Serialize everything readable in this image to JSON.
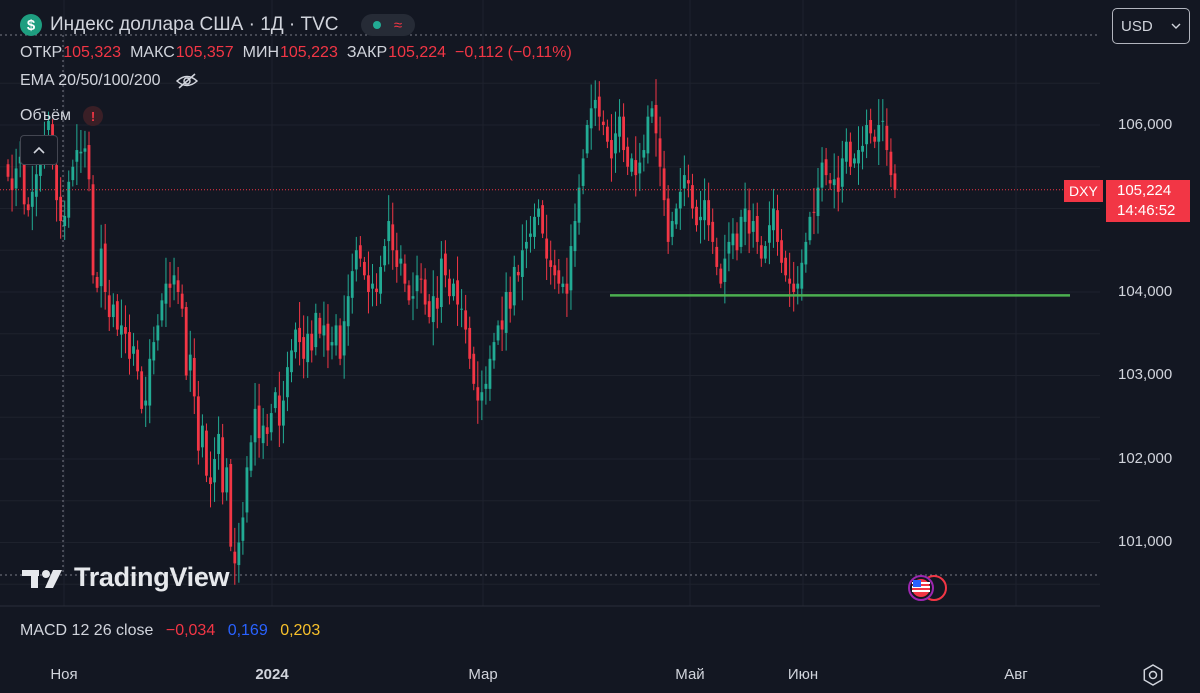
{
  "header": {
    "symbol_badge": "$",
    "title": "Индекс доллара США · 1Д · TVC",
    "status_icons": [
      "market-open-dot",
      "wave-icon"
    ],
    "ohlc": [
      {
        "label": "ОТКР",
        "value": "105,323"
      },
      {
        "label": "МАКС",
        "value": "105,357"
      },
      {
        "label": "МИН",
        "value": "105,223"
      },
      {
        "label": "ЗАКР",
        "value": "105,224"
      }
    ],
    "change": "−0,112 (−0,11%)",
    "ema": "EMA 20/50/100/200",
    "volume": "Объём",
    "volume_badge": "!"
  },
  "currency": "USD",
  "price_scale": [
    "106,000",
    "104,000",
    "103,000",
    "102,000",
    "101,000"
  ],
  "last_price": {
    "symbol": "DXY",
    "value": "105,224",
    "countdown": "14:46:52"
  },
  "brand": "TradingView",
  "macd": {
    "label": "MACD 12 26 close",
    "hist": "−0,034",
    "macd": "0,169",
    "signal": "0,203"
  },
  "time_axis": [
    "Ноя",
    "2024",
    "Мар",
    "Май",
    "Июн",
    "Авг"
  ],
  "colors": {
    "up": "#22ab94",
    "down": "#f23645",
    "support": "#4caf50",
    "background": "#131722"
  },
  "chart_data": {
    "type": "candlestick",
    "price_range": [
      100.6,
      106.9
    ],
    "support_level": 103.96,
    "last_close": 105.224,
    "closes": [
      105.38,
      105.22,
      105.48,
      105.62,
      105.05,
      104.98,
      105.2,
      105.41,
      105.6,
      105.88,
      106.05,
      105.52,
      105.1,
      104.85,
      104.91,
      105.32,
      105.5,
      105.7,
      105.68,
      105.72,
      105.35,
      104.2,
      104.05,
      104.52,
      104.0,
      103.7,
      103.85,
      103.55,
      103.6,
      103.5,
      103.2,
      103.35,
      103.05,
      102.6,
      102.7,
      103.2,
      103.4,
      103.6,
      103.9,
      104.1,
      104.05,
      104.2,
      104.0,
      103.8,
      103.0,
      103.25,
      102.75,
      102.1,
      102.4,
      101.8,
      101.7,
      102.0,
      102.3,
      101.6,
      101.9,
      100.95,
      100.75,
      101.0,
      101.3,
      101.9,
      102.2,
      102.6,
      102.25,
      102.4,
      102.3,
      102.55,
      102.8,
      102.4,
      102.7,
      103.1,
      103.3,
      103.55,
      103.4,
      103.2,
      103.5,
      103.3,
      103.75,
      103.5,
      103.6,
      103.3,
      103.4,
      103.6,
      103.2,
      103.65,
      103.95,
      104.25,
      104.5,
      104.4,
      104.2,
      104.0,
      104.1,
      104.0,
      104.3,
      104.55,
      104.85,
      104.5,
      104.3,
      104.4,
      104.1,
      103.9,
      103.95,
      104.2,
      104.15,
      103.85,
      103.7,
      103.95,
      103.8,
      104.4,
      104.2,
      103.95,
      104.1,
      103.85,
      103.8,
      103.55,
      103.2,
      102.9,
      102.7,
      102.8,
      102.9,
      103.2,
      103.4,
      103.6,
      103.55,
      104.0,
      103.8,
      104.3,
      104.2,
      104.5,
      104.6,
      104.7,
      104.9,
      105.0,
      104.7,
      104.4,
      104.3,
      104.2,
      104.1,
      104.1,
      103.98,
      104.55,
      104.85,
      105.25,
      105.6,
      106.0,
      106.2,
      106.3,
      106.1,
      106.0,
      105.8,
      105.6,
      105.9,
      106.1,
      105.7,
      105.5,
      105.6,
      105.4,
      105.55,
      105.7,
      106.1,
      106.2,
      105.9,
      105.5,
      105.1,
      104.6,
      104.85,
      105.0,
      105.2,
      105.4,
      105.3,
      105.0,
      104.8,
      104.9,
      105.1,
      104.8,
      104.6,
      104.3,
      104.1,
      104.4,
      104.6,
      104.7,
      104.5,
      104.9,
      105.0,
      104.7,
      104.85,
      104.6,
      104.4,
      104.55,
      104.8,
      105.0,
      104.6,
      104.35,
      104.2,
      104.1,
      104.0,
      104.1,
      104.35,
      104.6,
      104.9,
      104.95,
      105.25,
      105.55,
      105.4,
      105.3,
      105.35,
      105.2,
      105.6,
      105.8,
      105.5,
      105.6,
      105.7,
      105.75,
      106.0,
      105.9,
      105.8,
      106.0,
      106.05,
      105.7,
      105.4,
      105.224
    ],
    "x_axis_labels": [
      "Ноя",
      "2024",
      "Мар",
      "Май",
      "Июн",
      "Авг"
    ]
  }
}
